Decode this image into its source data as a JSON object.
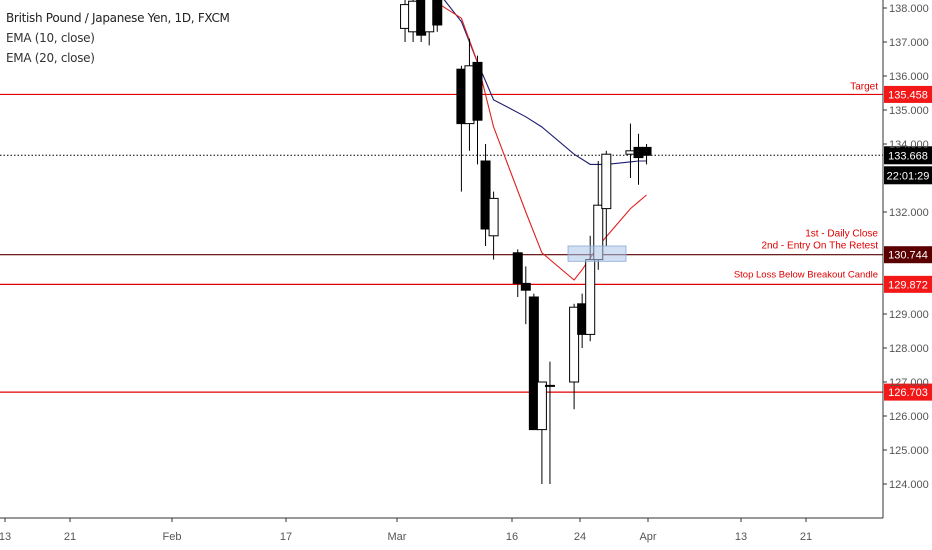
{
  "legend": {
    "title": "British Pound / Japanese Yen, 1D, FXCM",
    "ema10": "EMA (10, close)",
    "ema20": "EMA (20, close)"
  },
  "colors": {
    "level_line": "#e00000",
    "entry_line": "#5a0000",
    "current_price_line": "#000000",
    "ema10": "#1c1c6e",
    "ema20": "#e02020",
    "bull_candle": "#ffffff",
    "bear_candle": "#000000",
    "price_tag_red": "#f21818",
    "price_tag_dark": "#5a0000",
    "price_tag_black": "#000000",
    "axis_text": "#555555",
    "entry_zone": "#aac4e8"
  },
  "chart_data": {
    "type": "candlestick",
    "symbol": "British Pound / Japanese Yen, 1D, FXCM",
    "y_axis": {
      "ylim": [
        123.1,
        138.3
      ],
      "ticks": [
        "138.000",
        "137.000",
        "136.000",
        "135.000",
        "134.000",
        "132.000",
        "129.000",
        "128.000",
        "127.000",
        "126.000",
        "125.000",
        "124.000"
      ],
      "tick_values": [
        138,
        137,
        136,
        135,
        134,
        132,
        129,
        128,
        127,
        126,
        125,
        124
      ]
    },
    "x_axis": {
      "tick_labels": [
        "13",
        "21",
        "Feb",
        "17",
        "Mar",
        "16",
        "24",
        "Apr",
        "13",
        "21"
      ]
    },
    "candles": [
      {
        "date": "2020-03-02",
        "open": 137.4,
        "high": 138.6,
        "low": 137.0,
        "close": 138.1
      },
      {
        "date": "2020-03-03",
        "open": 137.3,
        "high": 138.3,
        "low": 137.0,
        "close": 138.2
      },
      {
        "date": "2020-03-04",
        "open": 138.3,
        "high": 138.5,
        "low": 137.0,
        "close": 137.2
      },
      {
        "date": "2020-03-05",
        "open": 137.3,
        "high": 138.5,
        "low": 136.9,
        "close": 138.3
      },
      {
        "date": "2020-03-06",
        "open": 138.3,
        "high": 138.6,
        "low": 137.3,
        "close": 137.5
      },
      {
        "date": "2020-03-09",
        "open": 136.2,
        "high": 136.3,
        "low": 132.6,
        "close": 134.6
      },
      {
        "date": "2020-03-10",
        "open": 134.6,
        "high": 137.1,
        "low": 133.8,
        "close": 136.3
      },
      {
        "date": "2020-03-11",
        "open": 136.4,
        "high": 136.6,
        "low": 133.4,
        "close": 134.7
      },
      {
        "date": "2020-03-12",
        "open": 133.5,
        "high": 134.0,
        "low": 131.0,
        "close": 131.5
      },
      {
        "date": "2020-03-13",
        "open": 131.3,
        "high": 132.6,
        "low": 130.6,
        "close": 132.4
      },
      {
        "date": "2020-03-16",
        "open": 130.8,
        "high": 130.9,
        "low": 129.5,
        "close": 129.9
      },
      {
        "date": "2020-03-17",
        "open": 129.9,
        "high": 130.4,
        "low": 128.7,
        "close": 129.7
      },
      {
        "date": "2020-03-18",
        "open": 129.5,
        "high": 129.6,
        "low": 125.6,
        "close": 125.6
      },
      {
        "date": "2020-03-19",
        "open": 125.6,
        "high": 126.9,
        "low": 124.0,
        "close": 127.0
      },
      {
        "date": "2020-03-20",
        "open": 126.9,
        "high": 127.6,
        "low": 124.0,
        "close": 126.9
      },
      {
        "date": "2020-03-23",
        "open": 127.0,
        "high": 129.3,
        "low": 126.2,
        "close": 129.2
      },
      {
        "date": "2020-03-24",
        "open": 129.3,
        "high": 129.6,
        "low": 128.0,
        "close": 128.4
      },
      {
        "date": "2020-03-25",
        "open": 128.4,
        "high": 131.3,
        "low": 128.2,
        "close": 130.6
      },
      {
        "date": "2020-03-26",
        "open": 130.6,
        "high": 133.5,
        "low": 130.3,
        "close": 132.2
      },
      {
        "date": "2020-03-27",
        "open": 132.1,
        "high": 133.8,
        "low": 131.0,
        "close": 133.7
      },
      {
        "date": "2020-03-30",
        "open": 133.7,
        "high": 134.6,
        "low": 133.0,
        "close": 133.8
      },
      {
        "date": "2020-03-31",
        "open": 133.9,
        "high": 134.3,
        "low": 132.8,
        "close": 133.6
      },
      {
        "date": "2020-04-01",
        "open": 133.9,
        "high": 134.0,
        "low": 133.4,
        "close": 133.67
      }
    ],
    "ema10": [
      {
        "date": "2020-03-03",
        "value": 138.9
      },
      {
        "date": "2020-03-06",
        "value": 138.5
      },
      {
        "date": "2020-03-09",
        "value": 137.6
      },
      {
        "date": "2020-03-11",
        "value": 136.4
      },
      {
        "date": "2020-03-13",
        "value": 135.3
      },
      {
        "date": "2020-03-17",
        "value": 134.8
      },
      {
        "date": "2020-03-19",
        "value": 134.5
      },
      {
        "date": "2020-03-23",
        "value": 133.7
      },
      {
        "date": "2020-03-25",
        "value": 133.4
      },
      {
        "date": "2020-03-27",
        "value": 133.4
      },
      {
        "date": "2020-03-31",
        "value": 133.5
      },
      {
        "date": "2020-04-01",
        "value": 133.5
      }
    ],
    "ema20": [
      {
        "date": "2020-03-02",
        "value": 138.6
      },
      {
        "date": "2020-03-05",
        "value": 138.3
      },
      {
        "date": "2020-03-09",
        "value": 137.7
      },
      {
        "date": "2020-03-11",
        "value": 136.4
      },
      {
        "date": "2020-03-13",
        "value": 134.5
      },
      {
        "date": "2020-03-17",
        "value": 132.0
      },
      {
        "date": "2020-03-19",
        "value": 130.8
      },
      {
        "date": "2020-03-23",
        "value": 130.0
      },
      {
        "date": "2020-03-24",
        "value": 130.3
      },
      {
        "date": "2020-03-26",
        "value": 131.0
      },
      {
        "date": "2020-03-30",
        "value": 132.1
      },
      {
        "date": "2020-04-01",
        "value": 132.5
      }
    ],
    "levels": [
      {
        "name": "target",
        "price": 135.458,
        "tag": "135.458",
        "label": "Target",
        "color": "#e00000",
        "tag_color": "#f21818"
      },
      {
        "name": "entry",
        "price": 130.744,
        "tag": "130.744",
        "label": "1st - Daily Close",
        "label2": "2nd - Entry On The Retest",
        "color": "#5a0000",
        "tag_color": "#5a0000"
      },
      {
        "name": "stop",
        "price": 129.872,
        "tag": "129.872",
        "label": "Stop Loss Below Breakout Candle",
        "color": "#e00000",
        "tag_color": "#f21818"
      },
      {
        "name": "support",
        "price": 126.703,
        "tag": "126.703",
        "label": "",
        "color": "#e00000",
        "tag_color": "#f21818"
      }
    ],
    "current": {
      "price": 133.668,
      "tag": "133.668",
      "countdown": "22:01:29"
    }
  }
}
